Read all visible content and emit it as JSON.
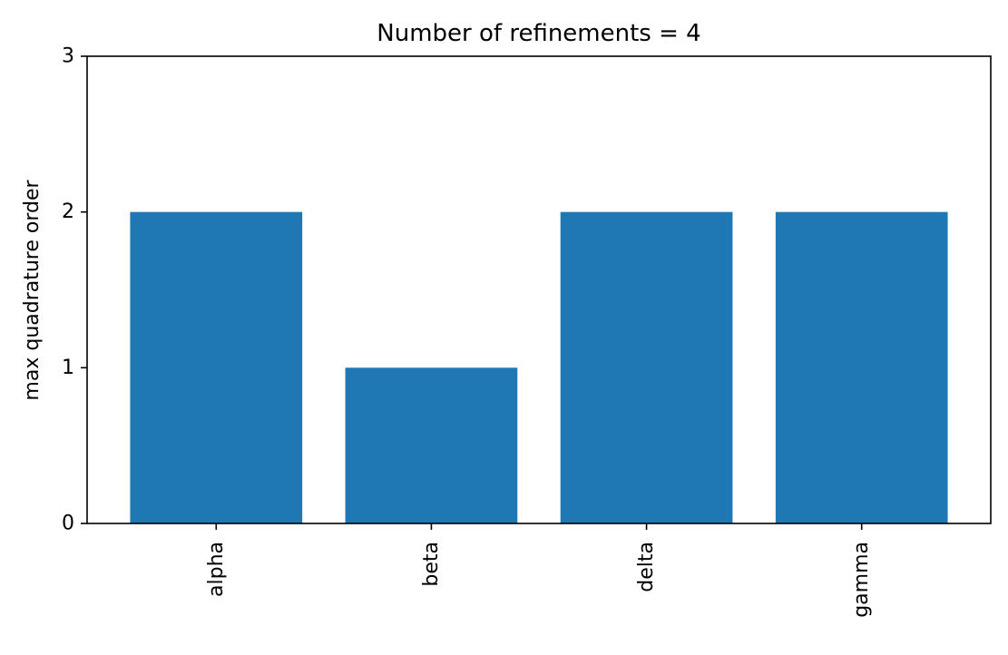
{
  "chart_data": {
    "type": "bar",
    "title": "Number of refinements = 4",
    "xlabel": "",
    "ylabel": "max quadrature order",
    "categories": [
      "alpha",
      "beta",
      "delta",
      "gamma"
    ],
    "values": [
      2,
      1,
      2,
      2
    ],
    "ylim": [
      0,
      3
    ],
    "yticks": [
      "0",
      "1",
      "2",
      "3"
    ],
    "grid": false,
    "bar_color": "#1f77b4"
  }
}
